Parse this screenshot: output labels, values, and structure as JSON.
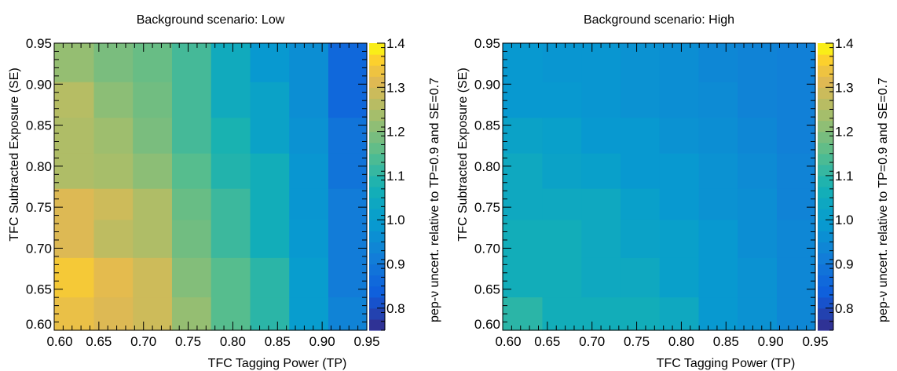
{
  "chart_data": [
    {
      "type": "heatmap",
      "title": "Background scenario: Low",
      "xlabel": "TFC Tagging Power (TP)",
      "ylabel": "TFC Subtracted Exposure (SE)",
      "zlabel": "pep-ν uncert. relative to TP=0.9 and SE=0.7",
      "xlim": [
        0.6,
        0.95
      ],
      "ylim": [
        0.6,
        0.95
      ],
      "zlim": [
        0.75,
        1.4
      ],
      "x_ticks": [
        "0.60",
        "0.65",
        "0.70",
        "0.75",
        "0.80",
        "0.85",
        "0.90",
        "0.95"
      ],
      "y_ticks": [
        "0.60",
        "0.65",
        "0.70",
        "0.75",
        "0.80",
        "0.85",
        "0.90",
        "0.95"
      ],
      "z_ticks": [
        "0.8",
        "0.9",
        "1.0",
        "1.1",
        "1.2",
        "1.3",
        "1.4"
      ],
      "x_bin_edges": [
        0.6,
        0.6444,
        0.6881,
        0.7319,
        0.7756,
        0.8194,
        0.8631,
        0.9069,
        0.95
      ],
      "y_bin_edges": [
        0.6,
        0.6406,
        0.6887,
        0.735,
        0.773,
        0.816,
        0.8595,
        0.903,
        0.95
      ],
      "values": [
        [
          1.33,
          1.31,
          1.29,
          1.22,
          1.15,
          1.1,
          1.0,
          0.93
        ],
        [
          1.35,
          1.32,
          1.29,
          1.2,
          1.15,
          1.1,
          1.0,
          0.91
        ],
        [
          1.31,
          1.27,
          1.25,
          1.18,
          1.12,
          1.06,
          0.99,
          0.91
        ],
        [
          1.31,
          1.29,
          1.25,
          1.17,
          1.12,
          1.06,
          0.98,
          0.91
        ],
        [
          1.25,
          1.24,
          1.21,
          1.15,
          1.09,
          1.06,
          0.98,
          0.89
        ],
        [
          1.25,
          1.23,
          1.19,
          1.13,
          1.08,
          1.02,
          0.97,
          0.89
        ],
        [
          1.26,
          1.21,
          1.18,
          1.13,
          1.05,
          1.02,
          0.96,
          0.86
        ],
        [
          1.22,
          1.19,
          1.17,
          1.13,
          1.05,
          0.99,
          0.96,
          0.86
        ]
      ],
      "grid": false,
      "colormap": "parula",
      "colorbar_position": "right"
    },
    {
      "type": "heatmap",
      "title": "Background scenario: High",
      "xlabel": "TFC Tagging Power (TP)",
      "ylabel": "TFC Subtracted Exposure (SE)",
      "zlabel": "pep-ν uncert. relative to TP=0.9 and SE=0.7",
      "xlim": [
        0.6,
        0.95
      ],
      "ylim": [
        0.6,
        0.95
      ],
      "zlim": [
        0.75,
        1.4
      ],
      "x_ticks": [
        "0.60",
        "0.65",
        "0.70",
        "0.75",
        "0.80",
        "0.85",
        "0.90",
        "0.95"
      ],
      "y_ticks": [
        "0.60",
        "0.65",
        "0.70",
        "0.75",
        "0.80",
        "0.85",
        "0.90",
        "0.95"
      ],
      "z_ticks": [
        "0.8",
        "0.9",
        "1.0",
        "1.1",
        "1.2",
        "1.3",
        "1.4"
      ],
      "x_bin_edges": [
        0.6,
        0.6444,
        0.6881,
        0.7319,
        0.7756,
        0.8194,
        0.8631,
        0.9069,
        0.95
      ],
      "y_bin_edges": [
        0.6,
        0.6406,
        0.6887,
        0.735,
        0.773,
        0.816,
        0.8595,
        0.903,
        0.95
      ],
      "values": [
        [
          1.1,
          1.06,
          1.06,
          1.06,
          1.04,
          0.99,
          0.97,
          0.94
        ],
        [
          1.06,
          1.06,
          1.04,
          1.04,
          1.01,
          0.99,
          0.97,
          0.94
        ],
        [
          1.06,
          1.06,
          1.04,
          1.02,
          1.01,
          0.99,
          0.96,
          0.94
        ],
        [
          1.04,
          1.04,
          1.04,
          1.01,
          0.99,
          0.97,
          0.96,
          0.93
        ],
        [
          1.04,
          1.02,
          1.01,
          0.99,
          0.99,
          0.97,
          0.95,
          0.93
        ],
        [
          1.02,
          1.01,
          0.99,
          0.99,
          0.97,
          0.96,
          0.94,
          0.92
        ],
        [
          0.99,
          0.99,
          0.98,
          0.97,
          0.96,
          0.95,
          0.93,
          0.92
        ],
        [
          0.99,
          0.98,
          0.98,
          0.97,
          0.96,
          0.94,
          0.93,
          0.92
        ]
      ],
      "grid": false,
      "colormap": "parula",
      "colorbar_position": "right"
    }
  ]
}
